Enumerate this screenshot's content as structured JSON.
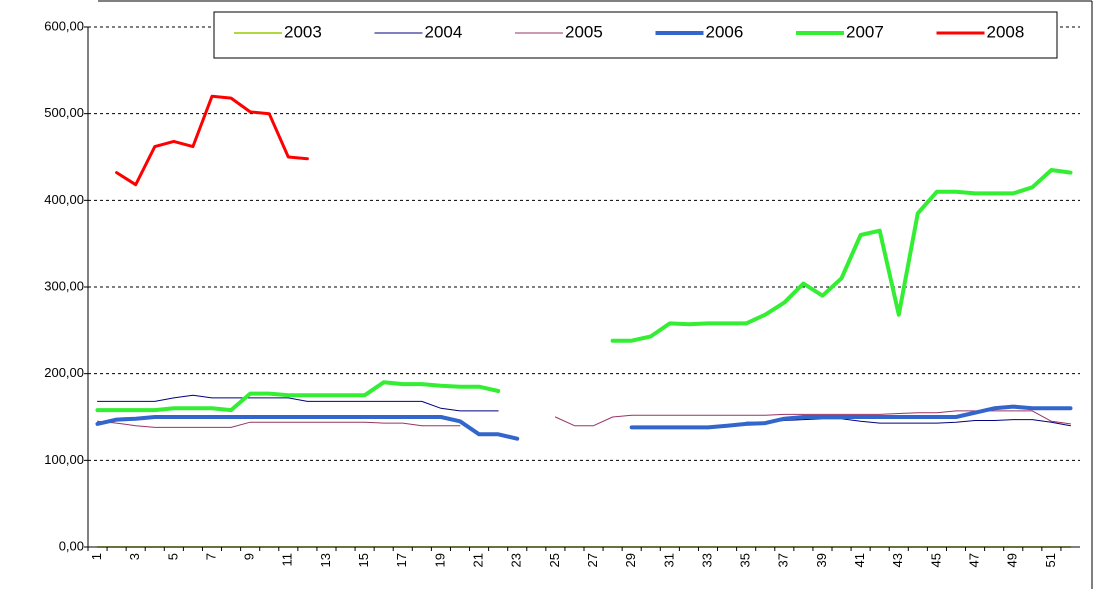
{
  "chart_data": {
    "type": "line",
    "categories": [
      1,
      null,
      3,
      null,
      5,
      null,
      7,
      null,
      9,
      null,
      11,
      null,
      13,
      null,
      15,
      null,
      17,
      null,
      19,
      null,
      21,
      null,
      23,
      null,
      25,
      null,
      27,
      null,
      29,
      null,
      31,
      null,
      33,
      null,
      35,
      null,
      37,
      null,
      39,
      null,
      41,
      null,
      43,
      null,
      45,
      null,
      47,
      null,
      49,
      null,
      51,
      null
    ],
    "ylim": [
      0,
      600
    ],
    "yticks": [
      {
        "value": 0,
        "label": "0,00"
      },
      {
        "value": 100,
        "label": "100,00"
      },
      {
        "value": 200,
        "label": "200,00"
      },
      {
        "value": 300,
        "label": "300,00"
      },
      {
        "value": 400,
        "label": "400,00"
      },
      {
        "value": 500,
        "label": "500,00"
      },
      {
        "value": 600,
        "label": "600,00"
      }
    ],
    "grid": true,
    "legend": "top",
    "series": [
      {
        "name": "2003",
        "color": "#99cc00",
        "line_width": 1.5,
        "values": [
          0,
          0,
          0,
          0,
          0,
          0,
          0,
          0,
          0,
          0,
          0,
          0,
          0,
          0,
          0,
          0,
          0,
          0,
          0,
          0,
          0,
          0,
          0,
          0,
          0,
          0,
          0,
          0,
          0,
          0,
          0,
          0,
          0,
          0,
          0,
          0,
          0,
          0,
          0,
          0,
          0,
          0,
          0,
          0,
          0,
          0,
          0,
          0,
          0,
          0,
          0,
          0
        ]
      },
      {
        "name": "2004",
        "color": "#000080",
        "line_width": 1,
        "values": [
          168,
          168,
          168,
          168,
          172,
          175,
          172,
          172,
          172,
          172,
          172,
          168,
          168,
          168,
          168,
          168,
          168,
          168,
          160,
          157,
          157,
          157,
          null,
          null,
          null,
          null,
          null,
          null,
          null,
          null,
          null,
          null,
          null,
          null,
          144,
          144,
          146,
          147,
          148,
          148,
          145,
          143,
          143,
          143,
          143,
          144,
          146,
          146,
          147,
          147,
          144,
          140
        ]
      },
      {
        "name": "2005",
        "color": "#993366",
        "line_width": 1,
        "values": [
          145,
          143,
          140,
          138,
          138,
          138,
          138,
          138,
          144,
          144,
          144,
          144,
          144,
          144,
          144,
          143,
          143,
          140,
          140,
          140,
          null,
          null,
          null,
          null,
          150,
          140,
          140,
          150,
          152,
          152,
          152,
          152,
          152,
          152,
          152,
          152,
          153,
          153,
          153,
          153,
          153,
          153,
          154,
          155,
          155,
          157,
          157,
          157,
          157,
          157,
          145,
          142
        ]
      },
      {
        "name": "2006",
        "color": "#3366cc",
        "line_width": 4,
        "values": [
          142,
          147,
          148,
          150,
          150,
          150,
          150,
          150,
          150,
          150,
          150,
          150,
          150,
          150,
          150,
          150,
          150,
          150,
          150,
          145,
          130,
          130,
          125,
          null,
          null,
          null,
          null,
          null,
          138,
          138,
          138,
          138,
          138,
          140,
          142,
          143,
          148,
          150,
          150,
          150,
          150,
          150,
          150,
          150,
          150,
          150,
          155,
          160,
          162,
          160,
          160,
          160
        ]
      },
      {
        "name": "2007",
        "color": "#33ee33",
        "line_width": 4,
        "values": [
          158,
          158,
          158,
          158,
          160,
          160,
          160,
          158,
          177,
          177,
          175,
          175,
          175,
          175,
          175,
          190,
          188,
          188,
          186,
          185,
          185,
          180,
          null,
          null,
          null,
          null,
          null,
          238,
          238,
          243,
          258,
          257,
          258,
          258,
          258,
          268,
          282,
          304,
          290,
          310,
          360,
          365,
          268,
          385,
          410,
          410,
          408,
          408,
          408,
          415,
          435,
          432
        ]
      },
      {
        "name": "2008",
        "color": "#ff0000",
        "line_width": 3,
        "values": [
          null,
          432,
          418,
          462,
          468,
          462,
          520,
          518,
          502,
          500,
          450,
          448,
          null,
          null,
          null,
          null,
          null,
          null,
          null,
          null,
          null,
          null,
          null,
          null,
          null,
          null,
          null,
          null,
          null,
          null,
          null,
          null,
          null,
          null,
          null,
          null,
          null,
          null,
          null,
          null,
          null,
          null,
          null,
          null,
          null,
          null,
          null,
          null,
          null,
          null,
          null,
          null
        ]
      }
    ]
  }
}
